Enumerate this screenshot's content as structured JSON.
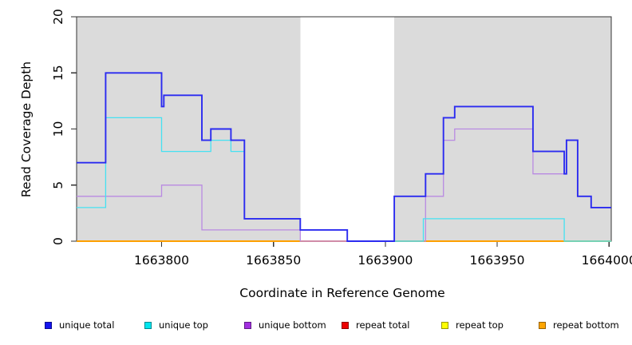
{
  "chart_data": {
    "type": "line",
    "subtype": "step",
    "title": "",
    "xlabel": "Coordinate in Reference Genome",
    "ylabel": "Read Coverage Depth",
    "xlim": [
      1663762,
      1664001
    ],
    "ylim": [
      0,
      20
    ],
    "x_ticks": [
      1663800,
      1663850,
      1663900,
      1663950,
      1664000
    ],
    "y_ticks": [
      0,
      5,
      10,
      15,
      20
    ],
    "grid": false,
    "legend_position": "bottom",
    "axis_color": "#333333",
    "shaded_band_color": "#dbdbdb",
    "shaded_bands": [
      [
        1663762,
        1663862
      ],
      [
        1663904,
        1664001
      ]
    ],
    "series": [
      {
        "label": "unique total",
        "line_color": "#2b2bf0",
        "legend_color": "#1414ee",
        "points": [
          [
            1663762,
            7
          ],
          [
            1663775,
            15
          ],
          [
            1663800,
            12
          ],
          [
            1663801,
            13
          ],
          [
            1663818,
            9
          ],
          [
            1663822,
            10
          ],
          [
            1663831,
            9
          ],
          [
            1663837,
            2
          ],
          [
            1663862,
            1
          ],
          [
            1663883,
            0
          ],
          [
            1663904,
            4
          ],
          [
            1663918,
            6
          ],
          [
            1663926,
            11
          ],
          [
            1663931,
            12
          ],
          [
            1663966,
            8
          ],
          [
            1663980,
            6
          ],
          [
            1663981,
            9
          ],
          [
            1663986,
            4
          ],
          [
            1663992,
            3
          ]
        ]
      },
      {
        "label": "unique top",
        "line_color": "#45e1f2",
        "legend_color": "#00e5ee",
        "points": [
          [
            1663762,
            3
          ],
          [
            1663775,
            11
          ],
          [
            1663800,
            8
          ],
          [
            1663822,
            9
          ],
          [
            1663831,
            8
          ],
          [
            1663837,
            2
          ],
          [
            1663862,
            1
          ],
          [
            1663883,
            0
          ],
          [
            1663917,
            2
          ],
          [
            1663980,
            0
          ]
        ]
      },
      {
        "label": "unique bottom",
        "line_color": "#b98ae2",
        "legend_color": "#a22fe0",
        "points": [
          [
            1663762,
            4
          ],
          [
            1663800,
            5
          ],
          [
            1663818,
            1
          ],
          [
            1663862,
            0
          ],
          [
            1663918,
            4
          ],
          [
            1663926,
            9
          ],
          [
            1663931,
            10
          ],
          [
            1663966,
            6
          ],
          [
            1663981,
            9
          ],
          [
            1663986,
            4
          ],
          [
            1663992,
            3
          ]
        ]
      },
      {
        "label": "repeat total",
        "line_color": "#ee3344",
        "legend_color": "#ee0000",
        "points": [
          [
            1663762,
            0
          ]
        ]
      },
      {
        "label": "repeat top",
        "line_color": "#ffee33",
        "legend_color": "#ffff00",
        "points": [
          [
            1663762,
            0
          ]
        ]
      },
      {
        "label": "repeat bottom",
        "line_color": "#ffa000",
        "legend_color": "#ffa500",
        "points": [
          [
            1663762,
            0
          ]
        ]
      }
    ],
    "baseline_segments": [
      {
        "from": 1663762,
        "to": 1663862,
        "color": "#ffa000"
      },
      {
        "from": 1663862,
        "to": 1663883,
        "color": "#f2808f"
      },
      {
        "from": 1663904,
        "to": 1663917,
        "color": "#8fd49a"
      },
      {
        "from": 1663917,
        "to": 1663980,
        "color": "#ffa000"
      },
      {
        "from": 1663980,
        "to": 1664001,
        "color": "#8fd49a"
      }
    ]
  }
}
